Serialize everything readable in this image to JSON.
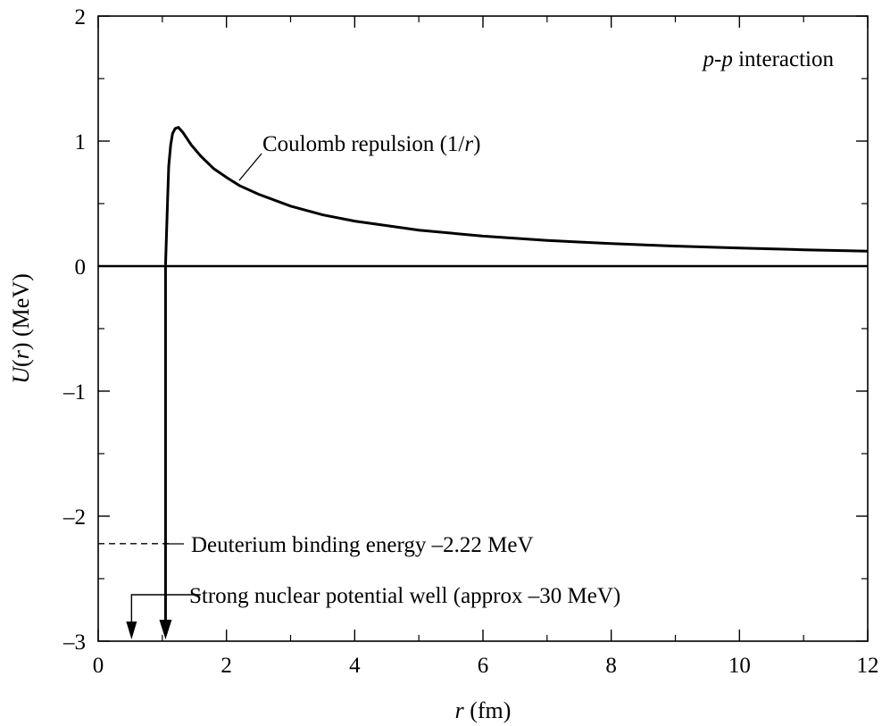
{
  "chart_data": {
    "type": "line",
    "title": "",
    "xlabel": "r (fm)",
    "xlabel_parts": {
      "var": "r",
      "unit": " (fm)"
    },
    "ylabel": "U(r) (MeV)",
    "ylabel_parts": {
      "var": "U",
      "open": "(",
      "arg": "r",
      "close": ")",
      "unit": " (MeV)"
    },
    "xlim": [
      0,
      12
    ],
    "ylim": [
      -3,
      2
    ],
    "xticks": [
      0,
      2,
      4,
      6,
      8,
      10,
      12
    ],
    "xtick_labels": [
      "0",
      "2",
      "4",
      "6",
      "8",
      "10",
      "12"
    ],
    "yticks": [
      -3,
      -2,
      -1,
      0,
      1,
      2
    ],
    "ytick_labels": [
      "–3",
      "–2",
      "–1",
      "0",
      "1",
      "2"
    ],
    "grid": false,
    "legend": "none",
    "series": [
      {
        "x": [
          1.05,
          1.08,
          1.1,
          1.13,
          1.16,
          1.2,
          1.25,
          1.32,
          1.45,
          1.6,
          1.8,
          2.0,
          2.2,
          2.5,
          3.0,
          3.5,
          4.0,
          5.0,
          6.0,
          7.0,
          8.0,
          9.0,
          10.0,
          11.0,
          12.0
        ],
        "y": [
          0.0,
          0.5,
          0.8,
          0.97,
          1.06,
          1.1,
          1.11,
          1.07,
          0.97,
          0.88,
          0.78,
          0.71,
          0.645,
          0.575,
          0.48,
          0.41,
          0.36,
          0.288,
          0.24,
          0.205,
          0.18,
          0.16,
          0.144,
          0.131,
          0.12
        ]
      }
    ],
    "reference_lines": [
      {
        "y": 0,
        "style": "solid"
      },
      {
        "y": -2.22,
        "style": "dashed",
        "x_range": [
          0,
          1.1
        ]
      }
    ],
    "annotations": [
      {
        "text_italic": "p",
        "text_dash": "-",
        "text_italic2": "p",
        "text_rest": " interaction"
      },
      {
        "text": "Coulomb repulsion (1/",
        "text_italic": "r",
        "text_end": ")"
      },
      {
        "text": "Deuterium binding energy –2.22 MeV"
      },
      {
        "text": "Strong nuclear potential well (approx –30 MeV)"
      }
    ]
  }
}
